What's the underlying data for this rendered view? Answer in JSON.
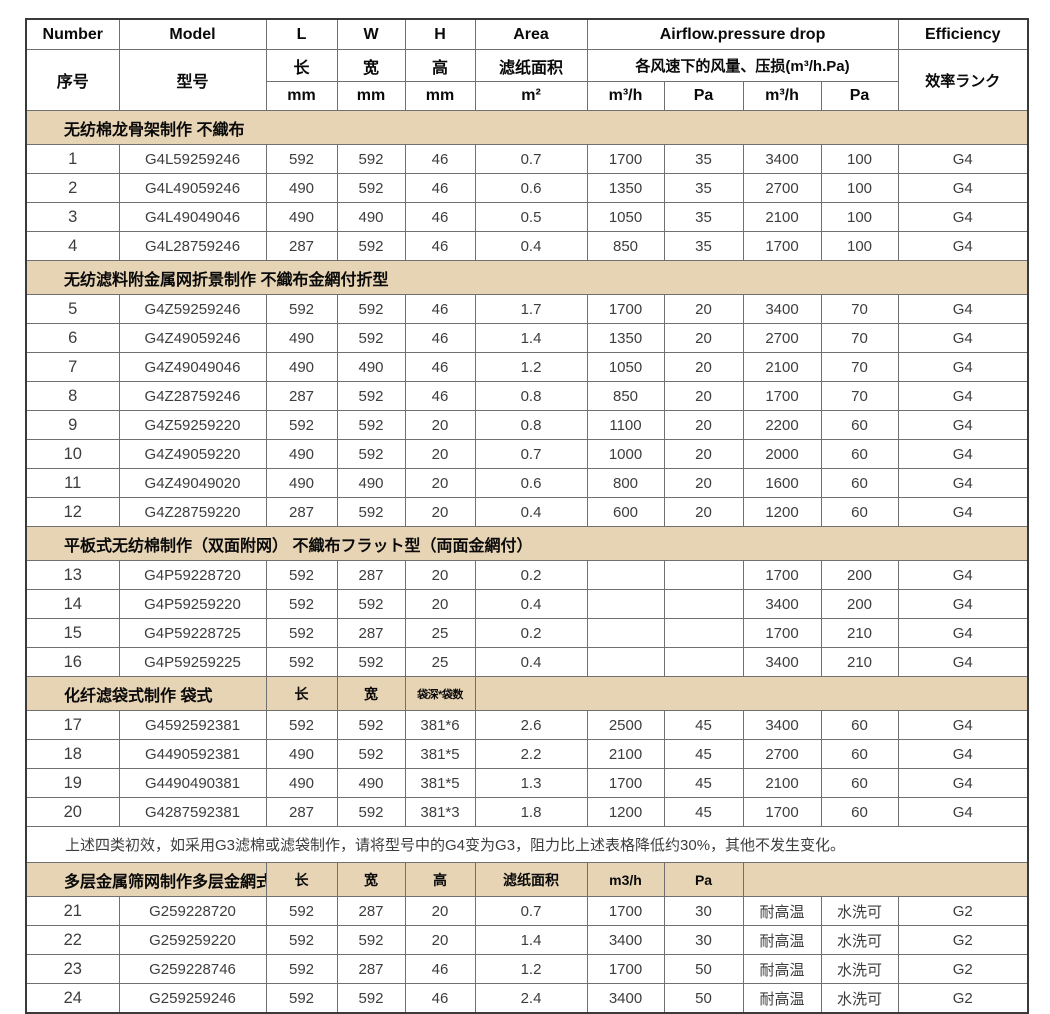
{
  "table": {
    "colors": {
      "band_background": "#e7d4b5",
      "inner_border": "#6f6f6f",
      "outer_border": "#3a3a3a",
      "data_text": "#3d3d3d"
    },
    "header": {
      "row1": {
        "number": "Number",
        "model": "Model",
        "l": "L",
        "w": "W",
        "h": "H",
        "area": "Area",
        "airflow": "Airflow.pressure drop",
        "efficiency": "Efficiency"
      },
      "row2": {
        "number": "序号",
        "model": "型号",
        "l": "长",
        "w": "宽",
        "h": "高",
        "area": "滤纸面积",
        "airflow": "各风速下的风量、压损(m³/h.Pa)",
        "efficiency": "效率ランク"
      },
      "row3": {
        "l_unit": "mm",
        "w_unit": "mm",
        "h_unit": "mm",
        "area_unit": "m²",
        "airflow1_unit": "m³/h",
        "pa1_unit": "Pa",
        "airflow2_unit": "m³/h",
        "pa2_unit": "Pa"
      }
    },
    "sections": [
      {
        "kind": "band",
        "title": "无纺棉龙骨架制作 不織布",
        "rows": [
          [
            "1",
            "G4L59259246",
            "592",
            "592",
            "46",
            "0.7",
            "1700",
            "35",
            "3400",
            "100",
            "G4"
          ],
          [
            "2",
            "G4L49059246",
            "490",
            "592",
            "46",
            "0.6",
            "1350",
            "35",
            "2700",
            "100",
            "G4"
          ],
          [
            "3",
            "G4L49049046",
            "490",
            "490",
            "46",
            "0.5",
            "1050",
            "35",
            "2100",
            "100",
            "G4"
          ],
          [
            "4",
            "G4L28759246",
            "287",
            "592",
            "46",
            "0.4",
            "850",
            "35",
            "1700",
            "100",
            "G4"
          ]
        ]
      },
      {
        "kind": "band",
        "title": "无纺滤料附金属网折景制作 不織布金網付折型",
        "rows": [
          [
            "5",
            "G4Z59259246",
            "592",
            "592",
            "46",
            "1.7",
            "1700",
            "20",
            "3400",
            "70",
            "G4"
          ],
          [
            "6",
            "G4Z49059246",
            "490",
            "592",
            "46",
            "1.4",
            "1350",
            "20",
            "2700",
            "70",
            "G4"
          ],
          [
            "7",
            "G4Z49049046",
            "490",
            "490",
            "46",
            "1.2",
            "1050",
            "20",
            "2100",
            "70",
            "G4"
          ],
          [
            "8",
            "G4Z28759246",
            "287",
            "592",
            "46",
            "0.8",
            "850",
            "20",
            "1700",
            "70",
            "G4"
          ],
          [
            "9",
            "G4Z59259220",
            "592",
            "592",
            "20",
            "0.8",
            "1100",
            "20",
            "2200",
            "60",
            "G4"
          ],
          [
            "10",
            "G4Z49059220",
            "490",
            "592",
            "20",
            "0.7",
            "1000",
            "20",
            "2000",
            "60",
            "G4"
          ],
          [
            "11",
            "G4Z49049020",
            "490",
            "490",
            "20",
            "0.6",
            "800",
            "20",
            "1600",
            "60",
            "G4"
          ],
          [
            "12",
            "G4Z28759220",
            "287",
            "592",
            "20",
            "0.4",
            "600",
            "20",
            "1200",
            "60",
            "G4"
          ]
        ]
      },
      {
        "kind": "band",
        "title": "平板式无纺棉制作（双面附网） 不織布フラット型（両面金網付）",
        "rows": [
          [
            "13",
            "G4P59228720",
            "592",
            "287",
            "20",
            "0.2",
            "",
            "",
            "1700",
            "200",
            "G4"
          ],
          [
            "14",
            "G4P59259220",
            "592",
            "592",
            "20",
            "0.4",
            "",
            "",
            "3400",
            "200",
            "G4"
          ],
          [
            "15",
            "G4P59228725",
            "592",
            "287",
            "25",
            "0.2",
            "",
            "",
            "1700",
            "210",
            "G4"
          ],
          [
            "16",
            "G4P59259225",
            "592",
            "592",
            "25",
            "0.4",
            "",
            "",
            "3400",
            "210",
            "G4"
          ]
        ]
      },
      {
        "kind": "band-cols",
        "title": "化纤滤袋式制作 袋式",
        "header_cells": [
          "长",
          "宽",
          "袋深*袋数"
        ],
        "rows": [
          [
            "17",
            "G4592592381",
            "592",
            "592",
            "381*6",
            "2.6",
            "2500",
            "45",
            "3400",
            "60",
            "G4"
          ],
          [
            "18",
            "G4490592381",
            "490",
            "592",
            "381*5",
            "2.2",
            "2100",
            "45",
            "2700",
            "60",
            "G4"
          ],
          [
            "19",
            "G4490490381",
            "490",
            "490",
            "381*5",
            "1.3",
            "1700",
            "45",
            "2100",
            "60",
            "G4"
          ],
          [
            "20",
            "G4287592381",
            "287",
            "592",
            "381*3",
            "1.8",
            "1200",
            "45",
            "1700",
            "60",
            "G4"
          ]
        ]
      },
      {
        "kind": "note",
        "text": "上述四类初效，如采用G3滤棉或滤袋制作，请将型号中的G4变为G3，阻力比上述表格降低约30%，其他不发生变化。"
      },
      {
        "kind": "band-cols",
        "title": "多层金属筛网制作多层金網式",
        "header_cells": [
          "长",
          "宽",
          "高",
          "滤纸面积",
          "m3/h",
          "Pa"
        ],
        "rows": [
          [
            "21",
            "G259228720",
            "592",
            "287",
            "20",
            "0.7",
            "1700",
            "30",
            "耐高温",
            "水洗可",
            "G2"
          ],
          [
            "22",
            "G259259220",
            "592",
            "592",
            "20",
            "1.4",
            "3400",
            "30",
            "耐高温",
            "水洗可",
            "G2"
          ],
          [
            "23",
            "G259228746",
            "592",
            "287",
            "46",
            "1.2",
            "1700",
            "50",
            "耐高温",
            "水洗可",
            "G2"
          ],
          [
            "24",
            "G259259246",
            "592",
            "592",
            "46",
            "2.4",
            "3400",
            "50",
            "耐高温",
            "水洗可",
            "G2"
          ]
        ]
      }
    ]
  }
}
